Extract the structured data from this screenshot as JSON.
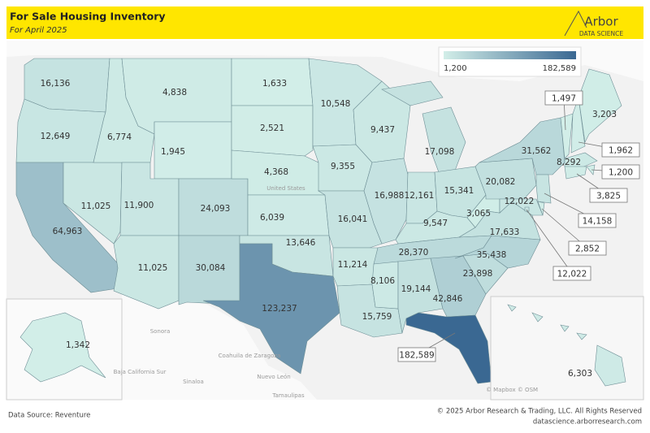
{
  "header": {
    "title": "For Sale Housing Inventory",
    "subtitle": "For April 2025",
    "logo": "Arbor",
    "logo_sub": "DATA SCIENCE"
  },
  "legend": {
    "min": {
      "value": 1200,
      "label": "1,200"
    },
    "max": {
      "value": 182589,
      "label": "182,589"
    }
  },
  "regions": {
    "values": [
      16136,
      12649,
      64963,
      11025,
      6774,
      4838,
      1945,
      11900,
      11025,
      24093,
      30084,
      1633,
      2521,
      4368,
      6039,
      13646,
      123237,
      10548,
      9355,
      16041,
      11214,
      15759,
      9437,
      16988,
      17098,
      12161,
      15341,
      9547,
      28370,
      8106,
      19144,
      42846,
      182589,
      23898,
      35438,
      17633,
      3065,
      20082,
      31562,
      1497,
      1962,
      3203,
      8292,
      1200,
      3825,
      14158,
      2852,
      12022,
      12022,
      1342,
      6303
    ],
    "value_labels": [
      "16,136",
      "12,649",
      "64,963",
      "11,025",
      "6,774",
      "4,838",
      "1,945",
      "11,900",
      "11,025",
      "24,093",
      "30,084",
      "1,633",
      "2,521",
      "4,368",
      "6,039",
      "13,646",
      "123,237",
      "10,548",
      "9,355",
      "16,041",
      "11,214",
      "15,759",
      "9,437",
      "16,988",
      "17,098",
      "12,161",
      "15,341",
      "9,547",
      "28,370",
      "8,106",
      "19,144",
      "42,846",
      "182,589",
      "23,898",
      "35,438",
      "17,633",
      "3,065",
      "20,082",
      "31,562",
      "1,497",
      "1,962",
      "3,203",
      "8,292",
      "1,200",
      "3,825",
      "14,158",
      "2,852",
      "12,022",
      "12,022",
      "1,342",
      "6,303"
    ]
  },
  "place_labels": [
    "United States",
    "Sonora",
    "Coahuila de Zaragoza",
    "Baja California Sur",
    "Sinaloa",
    "Nuevo León",
    "Tamaulipas"
  ],
  "attribution": "© Mapbox © OSM",
  "footer": {
    "source": "Data Source: Reventure",
    "copyright": "© 2025 Arbor Research & Trading, LLC. All Rights Reserved",
    "url": "datascience.arborresearch.com"
  }
}
